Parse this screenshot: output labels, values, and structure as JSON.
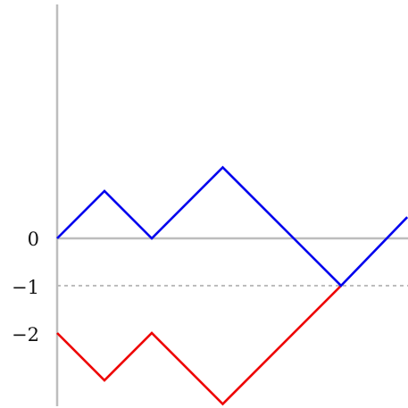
{
  "colors": {
    "axis": "#bdbdbd",
    "reference_line": "#bdbdbd",
    "upper_path": "#0000ee",
    "lower_path": "#ee0000",
    "text": "#111111"
  },
  "y_ticks": [
    {
      "value": 0,
      "label": "0"
    },
    {
      "value": -1,
      "label": "−1"
    },
    {
      "value": -2,
      "label": "−2"
    }
  ],
  "reference_level": -1,
  "x_range": [
    0,
    7.4
  ],
  "y_range": [
    -3.5,
    5
  ],
  "upper_path": {
    "points": [
      [
        0,
        0
      ],
      [
        1,
        1
      ],
      [
        2,
        0
      ],
      [
        3.5,
        1.5
      ],
      [
        5,
        0
      ],
      [
        6,
        -1
      ],
      [
        7.4,
        0.45
      ]
    ]
  },
  "lower_path": {
    "points": [
      [
        0,
        -2
      ],
      [
        1,
        -3
      ],
      [
        2,
        -2
      ],
      [
        3.5,
        -3.5
      ],
      [
        6,
        -1
      ]
    ]
  }
}
